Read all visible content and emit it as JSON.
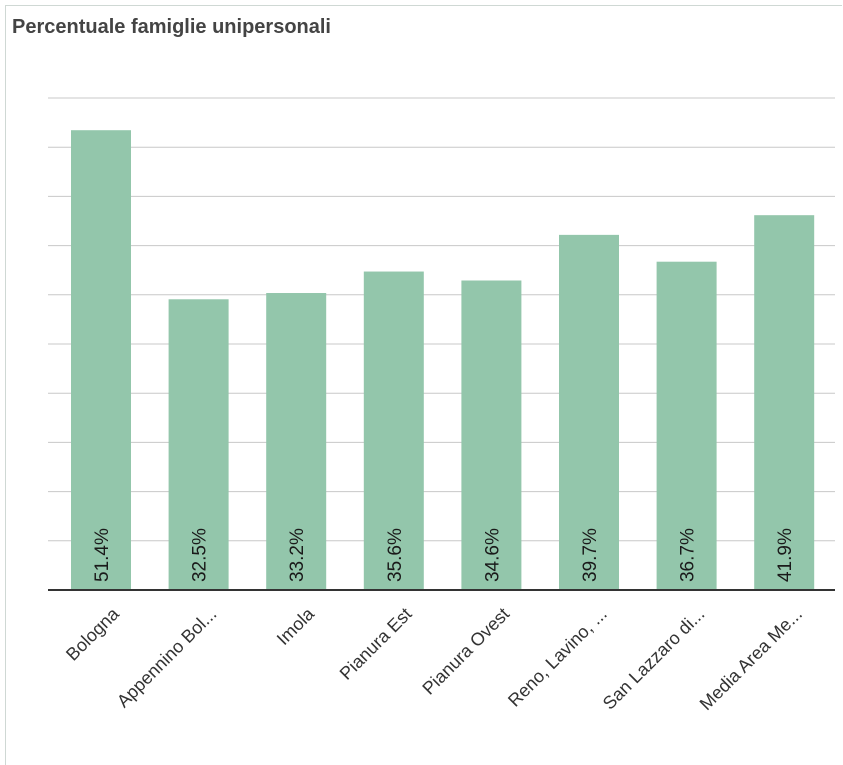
{
  "chart_data": {
    "type": "bar",
    "title": "Percentuale famiglie unipersonali",
    "categories": [
      "Bologna",
      "Appennino Bol...",
      "Imola",
      "Pianura Est",
      "Pianura Ovest",
      "Reno, Lavino, ...",
      "San Lazzaro di...",
      "Media Area Me..."
    ],
    "values": [
      51.4,
      32.5,
      33.2,
      35.6,
      34.6,
      39.7,
      36.7,
      41.9
    ],
    "value_labels": [
      "51.4%",
      "32.5%",
      "33.2%",
      "35.6%",
      "34.6%",
      "39.7%",
      "36.7%",
      "41.9%"
    ],
    "ylim": [
      0,
      55
    ],
    "grid": true,
    "legend": "none",
    "bar_color": "#93c6ab",
    "xlabel": "",
    "ylabel": ""
  }
}
